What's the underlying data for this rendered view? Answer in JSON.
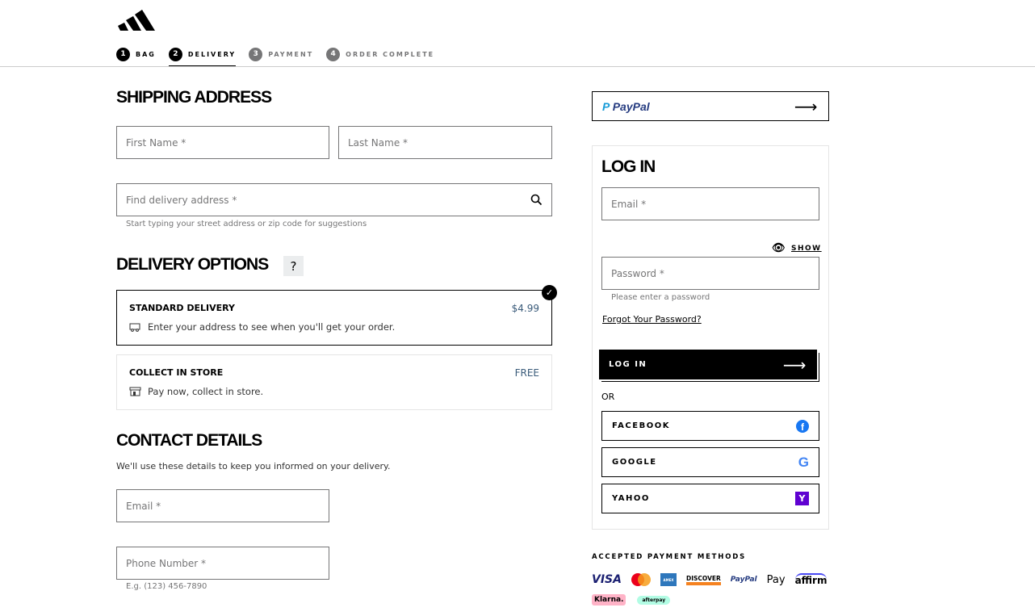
{
  "header": {
    "logo": "adidas",
    "steps": [
      {
        "num": "1",
        "label": "BAG"
      },
      {
        "num": "2",
        "label": "DELIVERY"
      },
      {
        "num": "3",
        "label": "PAYMENT"
      },
      {
        "num": "4",
        "label": "ORDER COMPLETE"
      }
    ]
  },
  "shipping": {
    "title": "SHIPPING ADDRESS",
    "first_name": "First Name *",
    "last_name": "Last Name *",
    "address": "Find delivery address *",
    "address_hint": "Start typing your street address or zip code for suggestions"
  },
  "delivery": {
    "title": "DELIVERY OPTIONS",
    "help": "?",
    "options": [
      {
        "name": "STANDARD DELIVERY",
        "price": "$4.99",
        "desc": "Enter your address to see when you'll get your order.",
        "icon": "truck-icon",
        "selected": true
      },
      {
        "name": "COLLECT IN STORE",
        "price": "FREE",
        "desc": "Pay now, collect in store.",
        "icon": "store-icon",
        "selected": false
      }
    ]
  },
  "contact": {
    "title": "CONTACT DETAILS",
    "subtitle": "We'll use these details to keep you informed on your delivery.",
    "email": "Email *",
    "phone": "Phone Number *",
    "phone_hint": "E.g. (123) 456-7890"
  },
  "paypal": {
    "label": "PayPal"
  },
  "login": {
    "title": "LOG IN",
    "email": "Email *",
    "show": "SHOW",
    "password": "Password *",
    "password_error": "Please enter a password",
    "forgot": "Forgot Your Password?",
    "button": "LOG IN",
    "or": "OR",
    "social": [
      {
        "label": "FACEBOOK",
        "color": "#1877f2"
      },
      {
        "label": "GOOGLE",
        "color": "#4285f4"
      },
      {
        "label": "YAHOO",
        "color": "#5f01d1"
      }
    ]
  },
  "payments": {
    "title": "ACCEPTED PAYMENT METHODS",
    "methods": [
      "VISA",
      "mastercard",
      "AMEX",
      "DISCOVER",
      "PayPal",
      "Pay",
      "affirm",
      "Klarna.",
      "afterpay"
    ]
  }
}
